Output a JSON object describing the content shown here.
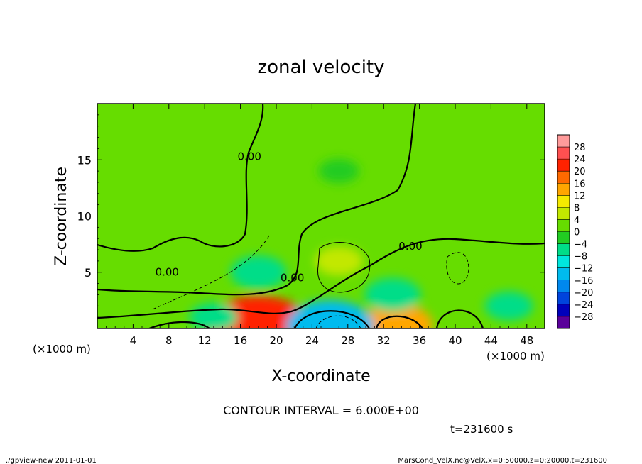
{
  "chart_data": {
    "type": "heatmap",
    "title": "zonal velocity",
    "xlabel": "X-coordinate",
    "ylabel": "Z-coordinate",
    "x_unit": "(×1000 m)",
    "y_unit": "(×1000 m)",
    "xlim": [
      0,
      50
    ],
    "ylim": [
      0,
      20
    ],
    "x_ticks": [
      4,
      8,
      12,
      16,
      20,
      24,
      28,
      32,
      36,
      40,
      44,
      48
    ],
    "y_ticks": [
      5,
      10,
      15
    ],
    "zero_contour_label": "0.00",
    "zero_contour_labels": [
      {
        "x": 17.0,
        "z": 15.0,
        "text": "0.00"
      },
      {
        "x": 7.8,
        "z": 4.7,
        "text": "0.00"
      },
      {
        "x": 21.8,
        "z": 4.2,
        "text": "0.00"
      },
      {
        "x": 35.0,
        "z": 7.0,
        "text": "0.00"
      }
    ],
    "colorbar": {
      "levels": [
        28,
        24,
        20,
        16,
        12,
        8,
        4,
        0,
        -4,
        -8,
        -12,
        -16,
        -20,
        -24,
        -28
      ],
      "labels": [
        "28",
        "24",
        "20",
        "16",
        "12",
        "8",
        "4",
        "0",
        "−4",
        "−8",
        "−12",
        "−16",
        "−20",
        "−24",
        "−28"
      ],
      "colors": [
        "#ff9a9a",
        "#ff5050",
        "#ff2200",
        "#ff6a00",
        "#ffa600",
        "#f5ea00",
        "#c2e800",
        "#66dd00",
        "#22cc22",
        "#00dd88",
        "#00e6dd",
        "#00bbee",
        "#0088ee",
        "#0044dd",
        "#0000bb",
        "#5a009a"
      ]
    },
    "features": [
      {
        "x": 18.0,
        "z": 0.2,
        "value": 20
      },
      {
        "x": 33.5,
        "z": 0.3,
        "value": 12
      },
      {
        "x": 27.0,
        "z": 6.0,
        "value": 6
      },
      {
        "x": 26.0,
        "z": 0.2,
        "value": -16
      },
      {
        "x": 33.0,
        "z": 3.0,
        "value": -8
      },
      {
        "x": 18.0,
        "z": 5.0,
        "value": -8
      },
      {
        "x": 27.0,
        "z": 14.0,
        "value": -4
      },
      {
        "x": 13.0,
        "z": 1.0,
        "value": -6
      },
      {
        "x": 46.0,
        "z": 2.0,
        "value": -6
      }
    ]
  },
  "contour_interval_label": "CONTOUR INTERVAL = 6.000E+00",
  "time_label": "t=231600 s",
  "footer": {
    "left": "./gpview-new  2011-01-01",
    "right": "MarsCond_VelX.nc@VelX,x=0:50000,z=0:20000,t=231600"
  }
}
